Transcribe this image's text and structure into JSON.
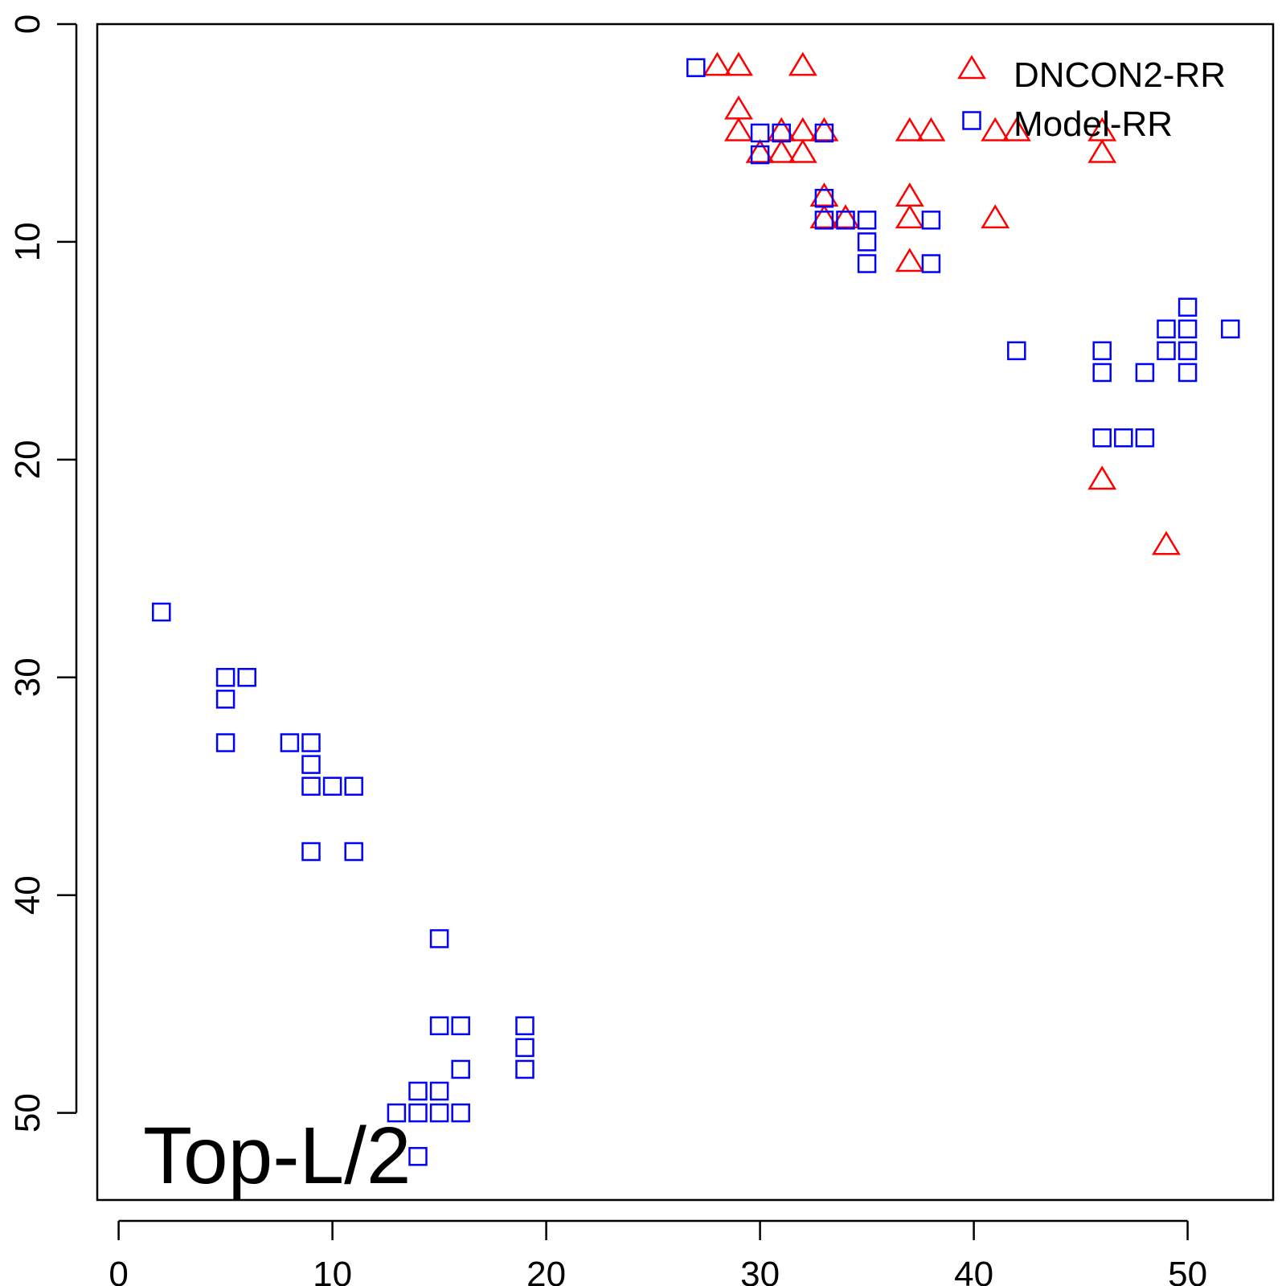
{
  "chart_data": {
    "type": "scatter",
    "annotation": "Top-L/2",
    "xlim": [
      -1,
      54
    ],
    "ylim": [
      0,
      54
    ],
    "y_reversed": true,
    "x_ticks": [
      0,
      10,
      20,
      30,
      40,
      50
    ],
    "y_ticks": [
      0,
      10,
      20,
      30,
      40,
      50
    ],
    "legend_position": "top-right",
    "series": [
      {
        "name": "DNCON2-RR",
        "marker": "triangle-icon",
        "color": "#ff0000",
        "points": [
          [
            28,
            2
          ],
          [
            29,
            2
          ],
          [
            32,
            2
          ],
          [
            29,
            4
          ],
          [
            29,
            5
          ],
          [
            30,
            6
          ],
          [
            31,
            5
          ],
          [
            31,
            6
          ],
          [
            32,
            5
          ],
          [
            32,
            6
          ],
          [
            33,
            5
          ],
          [
            33,
            8
          ],
          [
            33,
            9
          ],
          [
            34,
            9
          ],
          [
            37,
            5
          ],
          [
            38,
            5
          ],
          [
            37,
            8
          ],
          [
            37,
            9
          ],
          [
            37,
            11
          ],
          [
            41,
            5
          ],
          [
            42,
            5
          ],
          [
            41,
            9
          ],
          [
            46,
            5
          ],
          [
            46,
            6
          ],
          [
            46,
            21
          ],
          [
            49,
            24
          ]
        ]
      },
      {
        "name": "Model-RR",
        "marker": "square-icon",
        "color": "#0000ff",
        "points": [
          [
            27,
            2
          ],
          [
            30,
            5
          ],
          [
            30,
            6
          ],
          [
            31,
            5
          ],
          [
            33,
            5
          ],
          [
            33,
            8
          ],
          [
            33,
            9
          ],
          [
            34,
            9
          ],
          [
            35,
            9
          ],
          [
            35,
            10
          ],
          [
            35,
            11
          ],
          [
            38,
            9
          ],
          [
            38,
            11
          ],
          [
            42,
            15
          ],
          [
            46,
            15
          ],
          [
            46,
            16
          ],
          [
            46,
            19
          ],
          [
            47,
            19
          ],
          [
            48,
            19
          ],
          [
            48,
            16
          ],
          [
            49,
            14
          ],
          [
            49,
            15
          ],
          [
            50,
            13
          ],
          [
            50,
            14
          ],
          [
            50,
            15
          ],
          [
            50,
            16
          ],
          [
            52,
            14
          ],
          [
            2,
            27
          ],
          [
            5,
            30
          ],
          [
            6,
            30
          ],
          [
            5,
            31
          ],
          [
            5,
            33
          ],
          [
            8,
            33
          ],
          [
            9,
            33
          ],
          [
            9,
            34
          ],
          [
            9,
            35
          ],
          [
            10,
            35
          ],
          [
            11,
            35
          ],
          [
            9,
            38
          ],
          [
            11,
            38
          ],
          [
            15,
            42
          ],
          [
            15,
            46
          ],
          [
            16,
            46
          ],
          [
            16,
            48
          ],
          [
            19,
            46
          ],
          [
            19,
            47
          ],
          [
            19,
            48
          ],
          [
            14,
            49
          ],
          [
            15,
            49
          ],
          [
            13,
            50
          ],
          [
            14,
            50
          ],
          [
            15,
            50
          ],
          [
            16,
            50
          ],
          [
            14,
            52
          ]
        ]
      }
    ]
  }
}
